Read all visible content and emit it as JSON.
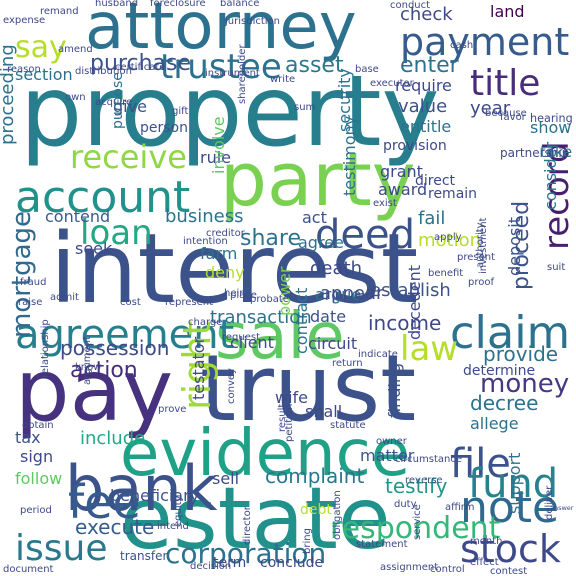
{
  "colors": {
    "background": "#ffffff",
    "palette": [
      "#440154",
      "#46327e",
      "#365c8d",
      "#277f8e",
      "#1fa187",
      "#4ac16d",
      "#a0da39",
      "#fde725"
    ]
  },
  "words": [
    {
      "text": "property",
      "c": "#277f8e",
      "r": 0
    },
    {
      "text": "interest",
      "c": "#3b528b",
      "r": 0
    },
    {
      "text": "trust",
      "c": "#3b528b",
      "r": 0
    },
    {
      "text": "estate",
      "c": "#21918c",
      "r": 0
    },
    {
      "text": "pay",
      "c": "#46327e",
      "r": 0
    },
    {
      "text": "party",
      "c": "#7ad151",
      "r": 0
    },
    {
      "text": "attorney",
      "c": "#2c728e",
      "r": 0
    },
    {
      "text": "evidence",
      "c": "#1fa187",
      "r": 0
    },
    {
      "text": "bank",
      "c": "#3b528b",
      "r": 0
    },
    {
      "text": "account",
      "c": "#21918c",
      "r": 0
    },
    {
      "text": "sale",
      "c": "#5ec962",
      "r": 0
    },
    {
      "text": "payment",
      "c": "#365c8d",
      "r": 0
    },
    {
      "text": "agreement",
      "c": "#277f8e",
      "r": 0
    },
    {
      "text": "claim",
      "c": "#2c728e",
      "r": 0
    },
    {
      "text": "deed",
      "c": "#3b528b",
      "r": 0
    },
    {
      "text": "fee",
      "c": "#365c8d",
      "r": 0
    },
    {
      "text": "note",
      "c": "#31688e",
      "r": 0
    },
    {
      "text": "stock",
      "c": "#3e4989",
      "r": 0
    },
    {
      "text": "issue",
      "c": "#2a788e",
      "r": 0
    },
    {
      "text": "file",
      "c": "#3b528b",
      "r": 0
    },
    {
      "text": "fund",
      "c": "#26828e",
      "r": 0
    },
    {
      "text": "title",
      "c": "#472d7b",
      "r": 0
    },
    {
      "text": "trustee",
      "c": "#2c728e",
      "r": 0
    },
    {
      "text": "loan",
      "c": "#22a884",
      "r": 0
    },
    {
      "text": "receive",
      "c": "#8fd744",
      "r": 0
    },
    {
      "text": "money",
      "c": "#443983",
      "r": 0
    },
    {
      "text": "record",
      "c": "#481f70",
      "r": -90
    },
    {
      "text": "right",
      "c": "#a0da39",
      "r": -90
    },
    {
      "text": "law",
      "c": "#b5de2b",
      "r": 0
    },
    {
      "text": "corporation",
      "c": "#2c728e",
      "r": 0
    },
    {
      "text": "respondent",
      "c": "#35b779",
      "r": 0
    },
    {
      "text": "mortgage",
      "c": "#31688e",
      "r": -90
    },
    {
      "text": "say",
      "c": "#b5de2b",
      "r": 0
    },
    {
      "text": "purchase",
      "c": "#3b528b",
      "r": 0
    },
    {
      "text": "asset",
      "c": "#2a788e",
      "r": 0
    },
    {
      "text": "check",
      "c": "#3e4989",
      "r": 0
    },
    {
      "text": "enter",
      "c": "#2c728e",
      "r": 0
    },
    {
      "text": "land",
      "c": "#440154",
      "r": 0
    },
    {
      "text": "section",
      "c": "#2c728e",
      "r": 0
    },
    {
      "text": "proceed",
      "c": "#3b528b",
      "r": -90
    },
    {
      "text": "share",
      "c": "#2c728e",
      "r": 0
    },
    {
      "text": "income",
      "c": "#3e4989",
      "r": 0
    },
    {
      "text": "action",
      "c": "#472d7b",
      "r": 0
    },
    {
      "text": "complaint",
      "c": "#2a788e",
      "r": 0
    },
    {
      "text": "testify",
      "c": "#1f988b",
      "r": 0
    },
    {
      "text": "provide",
      "c": "#2c728e",
      "r": 0
    },
    {
      "text": "decree",
      "c": "#2c728e",
      "r": 0
    },
    {
      "text": "establish",
      "c": "#3b528b",
      "r": 0
    },
    {
      "text": "possession",
      "c": "#3e4989",
      "r": 0
    },
    {
      "text": "business",
      "c": "#2c728e",
      "r": 0
    },
    {
      "text": "include",
      "c": "#22a884",
      "r": 0
    },
    {
      "text": "execute",
      "c": "#365c8d",
      "r": 0
    },
    {
      "text": "proceeding",
      "c": "#2c728e",
      "r": -90
    },
    {
      "text": "motion",
      "c": "#b5de2b",
      "r": 0
    },
    {
      "text": "fail",
      "c": "#2c728e",
      "r": 0
    },
    {
      "text": "value",
      "c": "#3b528b",
      "r": 0
    },
    {
      "text": "year",
      "c": "#3e4989",
      "r": 0
    },
    {
      "text": "require",
      "c": "#3e4989",
      "r": 0
    },
    {
      "text": "entitle",
      "c": "#2c728e",
      "r": 0
    },
    {
      "text": "give",
      "c": "#3b528b",
      "r": 0
    },
    {
      "text": "contend",
      "c": "#365c8d",
      "r": 0
    },
    {
      "text": "seek",
      "c": "#3e4989",
      "r": 0
    },
    {
      "text": "farm",
      "c": "#2c728e",
      "r": 0
    },
    {
      "text": "deny",
      "c": "#b5de2b",
      "r": 0
    },
    {
      "text": "death",
      "c": "#3e4989",
      "r": 0
    },
    {
      "text": "argue",
      "c": "#2c728e",
      "r": 0
    },
    {
      "text": "appear",
      "c": "#3e4989",
      "r": 0
    },
    {
      "text": "transaction",
      "c": "#2c728e",
      "r": 0
    },
    {
      "text": "date",
      "c": "#3b528b",
      "r": 0
    },
    {
      "text": "client",
      "c": "#3e4989",
      "r": 0
    },
    {
      "text": "shall",
      "c": "#3e4989",
      "r": 0
    },
    {
      "text": "allege",
      "c": "#2c728e",
      "r": 0
    },
    {
      "text": "wife",
      "c": "#3e4989",
      "r": 0
    },
    {
      "text": "sell",
      "c": "#3e4989",
      "r": 0
    },
    {
      "text": "beneficiary",
      "c": "#3b528b",
      "r": 0
    },
    {
      "text": "tax",
      "c": "#3b528b",
      "r": 0
    },
    {
      "text": "sign",
      "c": "#3e4989",
      "r": 0
    },
    {
      "text": "follow",
      "c": "#5ec962",
      "r": 0
    },
    {
      "text": "matter",
      "c": "#3b528b",
      "r": 0
    },
    {
      "text": "circuit",
      "c": "#3e4989",
      "r": 0
    },
    {
      "text": "grant",
      "c": "#3e4989",
      "r": 0
    },
    {
      "text": "award",
      "c": "#3e4989",
      "r": 0
    },
    {
      "text": "act",
      "c": "#3b528b",
      "r": 0
    },
    {
      "text": "agree",
      "c": "#2c728e",
      "r": 0
    },
    {
      "text": "rule",
      "c": "#3e4989",
      "r": 0
    },
    {
      "text": "take",
      "c": "#2c728e",
      "r": 0
    },
    {
      "text": "show",
      "c": "#2c728e",
      "r": 0
    },
    {
      "text": "consider",
      "c": "#2c728e",
      "r": -90
    },
    {
      "text": "deposit",
      "c": "#3b528b",
      "r": -90
    },
    {
      "text": "security",
      "c": "#2c728e",
      "r": -90
    },
    {
      "text": "involve",
      "c": "#5ec962",
      "r": -90
    },
    {
      "text": "testimony",
      "c": "#2c728e",
      "r": -90
    },
    {
      "text": "contract",
      "c": "#2c728e",
      "r": -90
    },
    {
      "text": "finding",
      "c": "#3b528b",
      "r": -90
    },
    {
      "text": "decedent",
      "c": "#3e4989",
      "r": -90
    },
    {
      "text": "determine",
      "c": "#3e4989",
      "r": 0
    },
    {
      "text": "power",
      "c": "#7ad151",
      "r": -90
    },
    {
      "text": "testator",
      "c": "#3e4989",
      "r": -90
    },
    {
      "text": "support",
      "c": "#2c728e",
      "r": -90
    },
    {
      "text": "transfer",
      "c": "#3b528b",
      "r": 0
    },
    {
      "text": "term",
      "c": "#3e4989",
      "r": 0
    },
    {
      "text": "conclude",
      "c": "#3e4989",
      "r": 0
    },
    {
      "text": "debt",
      "c": "#b5de2b",
      "r": 0
    },
    {
      "text": "person",
      "c": "#3b528b",
      "r": 0
    },
    {
      "text": "purpose",
      "c": "#2c728e",
      "r": -90
    },
    {
      "text": "direct",
      "c": "#3e4989",
      "r": 0
    },
    {
      "text": "remain",
      "c": "#3e4989",
      "r": 0
    },
    {
      "text": "provision",
      "c": "#3e4989",
      "r": 0
    },
    {
      "text": "hearing",
      "c": "#3e4989",
      "r": 0
    },
    {
      "text": "conduct",
      "c": "#3e4989",
      "r": 0
    },
    {
      "text": "cash",
      "c": "#3e4989",
      "r": 0
    },
    {
      "text": "because",
      "c": "#3e4989",
      "r": 0
    },
    {
      "text": "favor",
      "c": "#3e4989",
      "r": 0
    },
    {
      "text": "partnership",
      "c": "#3e4989",
      "r": 0
    },
    {
      "text": "exist",
      "c": "#3e4989",
      "r": 0
    },
    {
      "text": "intention",
      "c": "#3e4989",
      "r": 0
    },
    {
      "text": "creditor",
      "c": "#3e4989",
      "r": 0
    },
    {
      "text": "heir",
      "c": "#3e4989",
      "r": 0
    },
    {
      "text": "probate",
      "c": "#3e4989",
      "r": 0
    },
    {
      "text": "place",
      "c": "#3e4989",
      "r": 0
    },
    {
      "text": "cost",
      "c": "#3e4989",
      "r": 0
    },
    {
      "text": "admit",
      "c": "#3e4989",
      "r": 0
    },
    {
      "text": "fraud",
      "c": "#3e4989",
      "r": 0
    },
    {
      "text": "raise",
      "c": "#3e4989",
      "r": 0
    },
    {
      "text": "charge",
      "c": "#3e4989",
      "r": 0
    },
    {
      "text": "request",
      "c": "#3e4989",
      "r": 0
    },
    {
      "text": "indicate",
      "c": "#3e4989",
      "r": 0
    },
    {
      "text": "return",
      "c": "#3e4989",
      "r": 0
    },
    {
      "text": "know",
      "c": "#3e4989",
      "r": 0
    },
    {
      "text": "relationship",
      "c": "#3e4989",
      "r": -90
    },
    {
      "text": "obtain",
      "c": "#3e4989",
      "r": 0
    },
    {
      "text": "argument",
      "c": "#3e4989",
      "r": -90
    },
    {
      "text": "prove",
      "c": "#3e4989",
      "r": 0
    },
    {
      "text": "convey",
      "c": "#3e4989",
      "r": -90
    },
    {
      "text": "petition",
      "c": "#3e4989",
      "r": -90
    },
    {
      "text": "result",
      "c": "#3e4989",
      "r": -90
    },
    {
      "text": "statute",
      "c": "#3e4989",
      "r": 0
    },
    {
      "text": "owner",
      "c": "#3e4989",
      "r": 0
    },
    {
      "text": "circumstance",
      "c": "#3e4989",
      "r": 0
    },
    {
      "text": "reverse",
      "c": "#3e4989",
      "r": 0
    },
    {
      "text": "duty",
      "c": "#3e4989",
      "r": 0
    },
    {
      "text": "affirm",
      "c": "#3e4989",
      "r": 0
    },
    {
      "text": "answer",
      "c": "#3e4989",
      "r": 0
    },
    {
      "text": "deliver",
      "c": "#3e4989",
      "r": -90
    },
    {
      "text": "service",
      "c": "#3e4989",
      "r": -90
    },
    {
      "text": "effect",
      "c": "#3e4989",
      "r": 0
    },
    {
      "text": "statement",
      "c": "#3e4989",
      "r": 0
    },
    {
      "text": "obligation",
      "c": "#3e4989",
      "r": -90
    },
    {
      "text": "director",
      "c": "#3e4989",
      "r": -90
    },
    {
      "text": "intend",
      "c": "#3e4989",
      "r": 0
    },
    {
      "text": "decision",
      "c": "#3e4989",
      "r": 0
    },
    {
      "text": "equity",
      "c": "#3e4989",
      "r": -90
    },
    {
      "text": "document",
      "c": "#3e4989",
      "r": 0
    },
    {
      "text": "period",
      "c": "#3e4989",
      "r": 0
    },
    {
      "text": "expense",
      "c": "#3e4989",
      "r": 0
    },
    {
      "text": "remand",
      "c": "#3e4989",
      "r": 0
    },
    {
      "text": "husband",
      "c": "#3e4989",
      "r": 0
    },
    {
      "text": "foreclosure",
      "c": "#3e4989",
      "r": 0
    },
    {
      "text": "balance",
      "c": "#3e4989",
      "r": 0
    },
    {
      "text": "jurisdiction",
      "c": "#3e4989",
      "r": 0
    },
    {
      "text": "base",
      "c": "#3e4989",
      "r": 0
    },
    {
      "text": "executor",
      "c": "#3e4989",
      "r": 0
    },
    {
      "text": "write",
      "c": "#3e4989",
      "r": 0
    },
    {
      "text": "instrument",
      "c": "#3e4989",
      "r": 0
    },
    {
      "text": "certificate",
      "c": "#3e4989",
      "r": 0
    },
    {
      "text": "distribution",
      "c": "#3e4989",
      "r": 0
    },
    {
      "text": "reason",
      "c": "#3e4989",
      "r": 0
    },
    {
      "text": "own",
      "c": "#3e4989",
      "r": 0
    },
    {
      "text": "gift",
      "c": "#3e4989",
      "r": 0
    },
    {
      "text": "shareholder",
      "c": "#3e4989",
      "r": -90
    },
    {
      "text": "sum",
      "c": "#3e4989",
      "r": 0
    },
    {
      "text": "apply",
      "c": "#3e4989",
      "r": 0
    },
    {
      "text": "present",
      "c": "#3e4989",
      "r": 0
    },
    {
      "text": "proof",
      "c": "#3e4989",
      "r": 0
    },
    {
      "text": "benefit",
      "c": "#3e4989",
      "r": 0
    },
    {
      "text": "investment",
      "c": "#3e4989",
      "r": -90
    },
    {
      "text": "represent",
      "c": "#3e4989",
      "r": 0
    },
    {
      "text": "authority",
      "c": "#3e4989",
      "r": -90
    },
    {
      "text": "suit",
      "c": "#3e4989",
      "r": 0
    },
    {
      "text": "bring",
      "c": "#3e4989",
      "r": -90
    },
    {
      "text": "month",
      "c": "#3e4989",
      "r": 0
    },
    {
      "text": "contest",
      "c": "#3e4989",
      "r": 0
    },
    {
      "text": "control",
      "c": "#3e4989",
      "r": 0
    },
    {
      "text": "assignment",
      "c": "#3e4989",
      "r": 0
    },
    {
      "text": "amend",
      "c": "#3e4989",
      "r": 0
    },
    {
      "text": "acquire",
      "c": "#3e4989",
      "r": 0
    }
  ]
}
